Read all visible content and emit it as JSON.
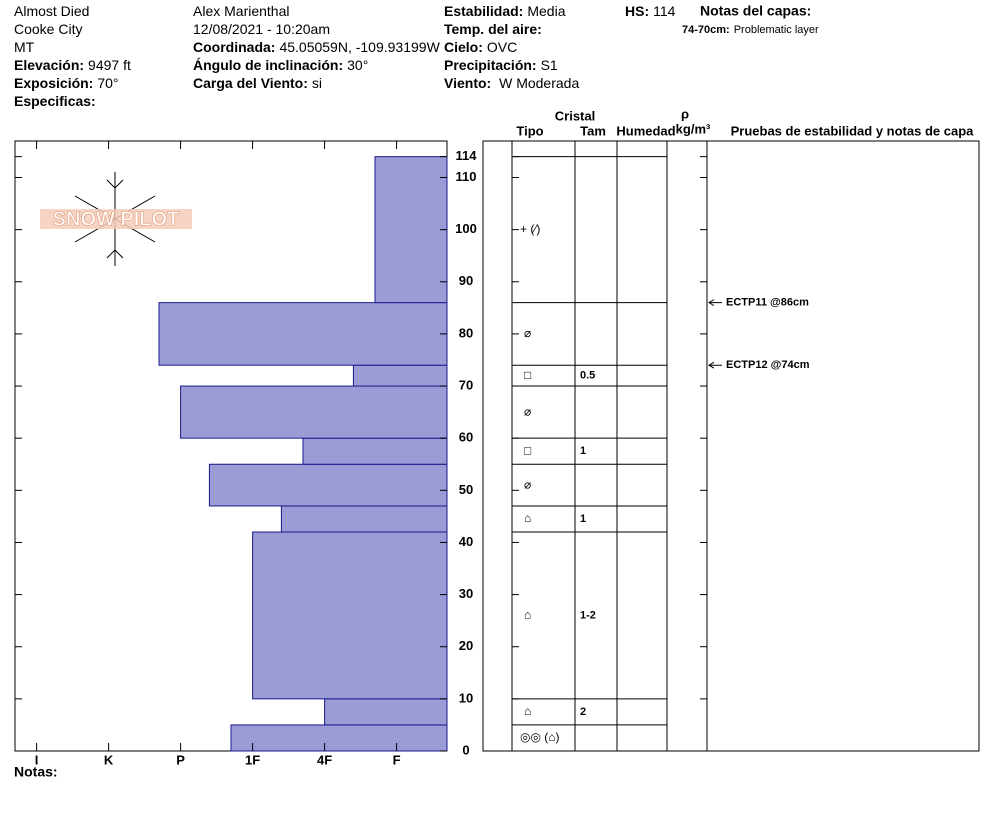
{
  "header": {
    "col1": [
      {
        "text": "Almost Died"
      },
      {
        "text": "Cooke City"
      },
      {
        "text": "MT"
      },
      {
        "label": "Elevación:",
        "value": "9497 ft"
      },
      {
        "label": "Exposición:",
        "value": "70°"
      },
      {
        "label": "Especificas:"
      }
    ],
    "col2": [
      {
        "text": "Alex Marienthal"
      },
      {
        "text": "12/08/2021 - 10:20am"
      },
      {
        "label": "Coordinada:",
        "value": "45.05059N, -109.93199W"
      },
      {
        "label": "Ángulo de inclinación:",
        "value": "30°"
      },
      {
        "label": "Carga del Viento:",
        "value": "si"
      }
    ],
    "col3": [
      {
        "label": "Estabilidad:",
        "value": "Media"
      },
      {
        "label": "Temp. del aire:"
      },
      {
        "label": "Cielo:",
        "value": "OVC"
      },
      {
        "label": "Precipitación:",
        "value": "S1"
      },
      {
        "label": "Viento:",
        "value": " W Moderada"
      }
    ],
    "hs": {
      "label": "HS:",
      "value": "114"
    },
    "layer_notes": {
      "title": "Notas del capas:",
      "items": [
        {
          "label": "74-70cm:",
          "value": "Problematic layer"
        }
      ]
    },
    "logo": "SNOW PILOT",
    "notes": "Notas:"
  },
  "chart_data": {
    "type": "snow-profile",
    "color": "#9b9bd6",
    "xlim": [
      6.3,
      0.3
    ],
    "xticks": [
      {
        "value": 6,
        "label": "I"
      },
      {
        "value": 5,
        "label": "K"
      },
      {
        "value": 4,
        "label": "P"
      },
      {
        "value": 3,
        "label": "1F"
      },
      {
        "value": 2,
        "label": "4F"
      },
      {
        "value": 1,
        "label": "F"
      }
    ],
    "ylim": [
      0,
      117
    ],
    "yticks": [
      0,
      10,
      20,
      30,
      40,
      50,
      60,
      70,
      80,
      90,
      100,
      110,
      114
    ],
    "columns": {
      "crystal": "Cristal",
      "type": "Tipo",
      "size": "Tam",
      "moisture": "Humedad",
      "rho": "ρ",
      "density_unit": "kg/m³",
      "tests": "Pruebas de estabilidad y notas de capa"
    },
    "layers": [
      {
        "bottom": 0,
        "top": 5,
        "hardness": 3.3,
        "grain": "◎◎ (⌂)"
      },
      {
        "bottom": 5,
        "top": 10,
        "hardness": 2,
        "grain": "⌂",
        "size": "2"
      },
      {
        "bottom": 10,
        "top": 42,
        "hardness": 3,
        "grain": "⌂",
        "size": "1-2"
      },
      {
        "bottom": 42,
        "top": 47,
        "hardness": 2.6,
        "grain": "⌂",
        "size": "1"
      },
      {
        "bottom": 47,
        "top": 55,
        "hardness": 3.6,
        "grain": "⌀"
      },
      {
        "bottom": 55,
        "top": 60,
        "hardness": 2.3,
        "grain": "□",
        "size": "1"
      },
      {
        "bottom": 60,
        "top": 70,
        "hardness": 4,
        "grain": "⌀"
      },
      {
        "bottom": 70,
        "top": 74,
        "hardness": 1.6,
        "grain": "□",
        "size": "0.5"
      },
      {
        "bottom": 74,
        "top": 86,
        "hardness": 4.3,
        "grain": "⌀"
      },
      {
        "bottom": 86,
        "top": 114,
        "hardness": 1.3,
        "grain": "+ (⁄)"
      }
    ],
    "tests": [
      {
        "depth": 86,
        "label": "ECTP11 @86cm"
      },
      {
        "depth": 74,
        "label": "ECTP12 @74cm"
      }
    ]
  }
}
